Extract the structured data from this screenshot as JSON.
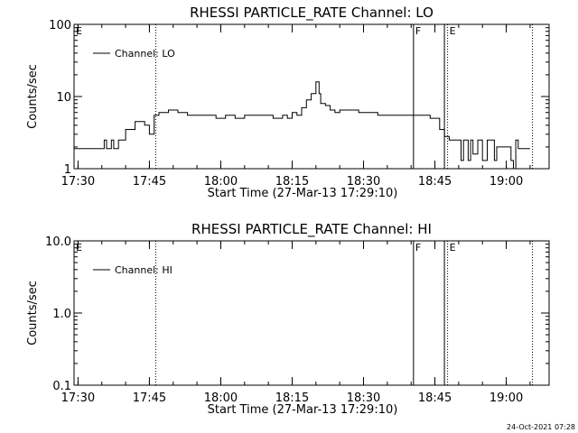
{
  "chart_data": [
    {
      "type": "line",
      "title": "RHESSI PARTICLE_RATE Channel: LO",
      "xlabel": "Start Time (27-Mar-13 17:29:10)",
      "ylabel": "Counts/sec",
      "yscale": "log",
      "ylim": [
        1,
        100
      ],
      "yticks": [
        "1",
        "10",
        "100"
      ],
      "xlim": [
        "17:29:10",
        "19:09:00"
      ],
      "xticks": [
        "17:30",
        "17:45",
        "18:00",
        "18:15",
        "18:30",
        "18:45",
        "19:00"
      ],
      "legend": "top-left",
      "legend_line_color": "#000000",
      "series": [
        {
          "name": "Channel: LO",
          "x": [
            "17:29:10",
            "17:35:00",
            "17:35:30",
            "17:36:00",
            "17:36:30",
            "17:37:00",
            "17:37:30",
            "17:38:00",
            "17:38:30",
            "17:39:00",
            "17:40:00",
            "17:42:00",
            "17:44:00",
            "17:45:00",
            "17:45:40",
            "17:46:00",
            "17:47:00",
            "17:49:00",
            "17:51:00",
            "17:53:00",
            "17:55:00",
            "17:57:00",
            "17:59:00",
            "18:01:00",
            "18:03:00",
            "18:05:00",
            "18:07:00",
            "18:09:00",
            "18:11:00",
            "18:13:00",
            "18:14:00",
            "18:15:00",
            "18:16:00",
            "18:17:00",
            "18:18:00",
            "18:19:00",
            "18:20:00",
            "18:20:40",
            "18:21:00",
            "18:22:00",
            "18:23:00",
            "18:24:00",
            "18:25:00",
            "18:27:00",
            "18:29:00",
            "18:31:00",
            "18:33:00",
            "18:35:00",
            "18:37:00",
            "18:39:00",
            "18:41:00",
            "18:43:00",
            "18:44:00",
            "18:45:00",
            "18:46:00",
            "18:47:00",
            "18:48:00",
            "18:49:00",
            "18:50:00",
            "18:50:30",
            "18:51:00",
            "18:52:00",
            "18:52:30",
            "18:53:00",
            "18:54:00",
            "18:55:00",
            "18:56:00",
            "18:57:00",
            "18:57:30",
            "18:58:00",
            "18:59:00",
            "19:00:00",
            "19:01:00",
            "19:01:30",
            "19:02:00",
            "19:02:30",
            "19:03:00",
            "19:05:00"
          ],
          "y": [
            1.9,
            1.9,
            2.5,
            1.9,
            1.9,
            2.5,
            1.9,
            1.9,
            2.5,
            2.5,
            3.5,
            4.5,
            4.0,
            3.0,
            3.0,
            5.5,
            6.0,
            6.5,
            6.0,
            5.5,
            5.5,
            5.5,
            5.0,
            5.5,
            5.0,
            5.5,
            5.5,
            5.5,
            5.0,
            5.5,
            5.0,
            6.0,
            5.5,
            7.0,
            9.0,
            11.0,
            16.0,
            11.0,
            8.0,
            7.5,
            6.5,
            6.0,
            6.5,
            6.5,
            6.0,
            6.0,
            5.5,
            5.5,
            5.5,
            5.5,
            5.5,
            5.5,
            5.0,
            5.0,
            3.5,
            2.8,
            2.5,
            2.5,
            2.5,
            1.3,
            2.5,
            1.3,
            2.5,
            1.6,
            2.5,
            1.3,
            2.5,
            2.5,
            1.3,
            2.0,
            2.0,
            2.0,
            1.3,
            1.0,
            2.5,
            1.9,
            1.9,
            1.9
          ]
        }
      ],
      "annotations": [
        {
          "label": "E",
          "x": "17:29:10",
          "style": "dotted"
        },
        {
          "label": "",
          "x": "17:46:20",
          "style": "dotted"
        },
        {
          "label": "F",
          "x": "18:40:30",
          "style": "solid"
        },
        {
          "label": "",
          "x": "18:47:00",
          "style": "solid"
        },
        {
          "label": "E",
          "x": "18:47:40",
          "style": "dotted"
        },
        {
          "label": "",
          "x": "19:05:30",
          "style": "dotted"
        }
      ]
    },
    {
      "type": "line",
      "title": "RHESSI PARTICLE_RATE Channel: HI",
      "xlabel": "Start Time (27-Mar-13 17:29:10)",
      "ylabel": "Counts/sec",
      "yscale": "log",
      "ylim": [
        0.1,
        10
      ],
      "yticks": [
        "0.1",
        "1.0",
        "10.0"
      ],
      "xlim": [
        "17:29:10",
        "19:09:00"
      ],
      "xticks": [
        "17:30",
        "17:45",
        "18:00",
        "18:15",
        "18:30",
        "18:45",
        "19:00"
      ],
      "legend": "top-left",
      "legend_line_color": "#000000",
      "series": [
        {
          "name": "Channel: HI",
          "x": [],
          "y": []
        }
      ],
      "annotations": [
        {
          "label": "E",
          "x": "17:29:10",
          "style": "dotted"
        },
        {
          "label": "",
          "x": "17:46:20",
          "style": "dotted"
        },
        {
          "label": "F",
          "x": "18:40:30",
          "style": "solid"
        },
        {
          "label": "",
          "x": "18:47:00",
          "style": "solid"
        },
        {
          "label": "E",
          "x": "18:47:40",
          "style": "dotted"
        },
        {
          "label": "",
          "x": "19:05:30",
          "style": "dotted"
        }
      ]
    }
  ],
  "footer": "24-Oct-2021 07:28"
}
